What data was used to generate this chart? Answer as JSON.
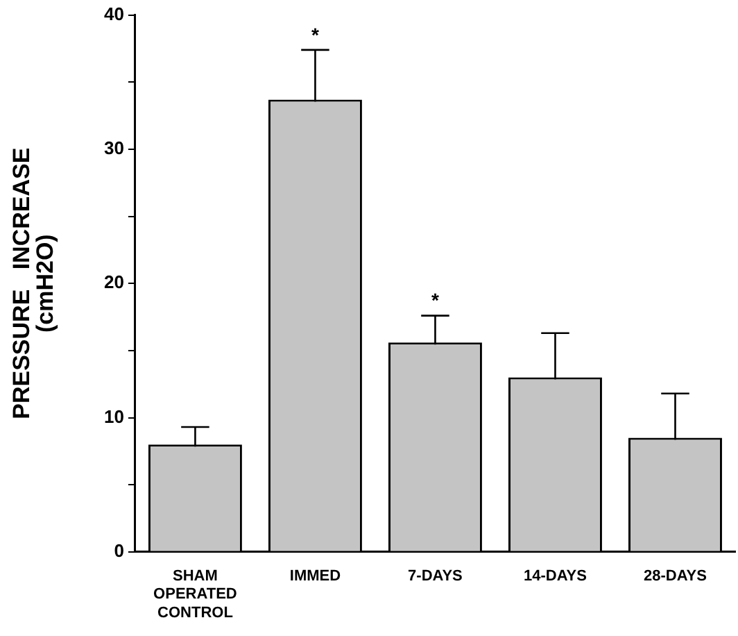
{
  "chart_data": {
    "type": "bar",
    "ylabel": "PRESSURE   INCREASE\n(cmH2O)",
    "categories": [
      "SHAM\nOPERATED\nCONTROL",
      "IMMED",
      "7-DAYS",
      "14-DAYS",
      "28-DAYS"
    ],
    "values": [
      8.0,
      33.7,
      15.6,
      13.0,
      8.5
    ],
    "errors": [
      1.3,
      3.7,
      2.0,
      3.3,
      3.3
    ],
    "value_labels": [
      null,
      "*",
      "*",
      null,
      null
    ],
    "color": "#c4c4c4",
    "ylim": [
      0,
      40
    ],
    "yticks": [
      0,
      {
        "value": 5,
        "label": null
      },
      10,
      {
        "value": 15,
        "label": null
      },
      20,
      {
        "value": 25,
        "label": null
      },
      30,
      {
        "value": 35,
        "label": null
      },
      40
    ],
    "grid": false,
    "legend": false
  }
}
